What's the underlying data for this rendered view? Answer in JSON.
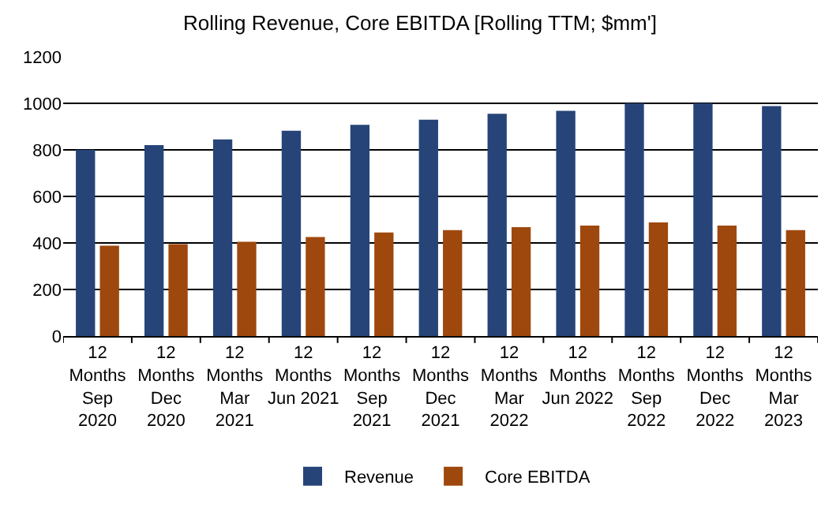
{
  "chart_data": {
    "type": "bar",
    "title": "Rolling Revenue, Core EBITDA [Rolling TTM; $mm']",
    "categories": [
      "12\nMonths\nSep\n2020",
      "12\nMonths\nDec\n2020",
      "12\nMonths\nMar\n2021",
      "12\nMonths\nJun 2021",
      "12\nMonths\nSep\n2021",
      "12\nMonths\nDec\n2021",
      "12\nMonths\nMar\n2022",
      "12\nMonths\nJun 2022",
      "12\nMonths\nSep\n2022",
      "12\nMonths\nDec\n2022",
      "12\nMonths\nMar\n2023"
    ],
    "series": [
      {
        "name": "Revenue",
        "color": "#264478",
        "values": [
          800,
          820,
          845,
          882,
          908,
          930,
          955,
          968,
          1000,
          1000,
          988
        ]
      },
      {
        "name": "Core EBITDA",
        "color": "#9e480e",
        "values": [
          388,
          395,
          405,
          425,
          445,
          455,
          468,
          475,
          488,
          475,
          455
        ]
      }
    ],
    "ylim": [
      0,
      1200
    ],
    "yticks": [
      0,
      200,
      400,
      600,
      800,
      1000,
      1200
    ],
    "grid": "y",
    "legend": "bottom"
  }
}
